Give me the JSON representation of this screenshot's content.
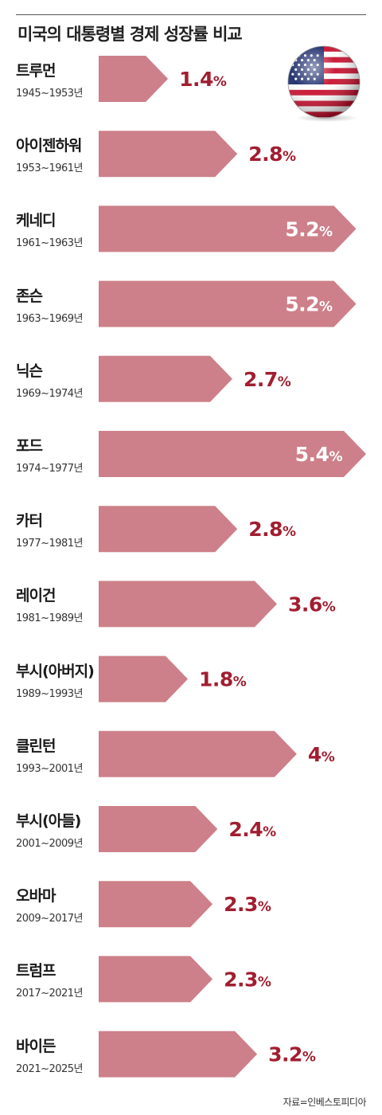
{
  "chart_data": {
    "type": "bar",
    "orientation": "horizontal",
    "title": "미국의 대통령별 경제 성장률 비교",
    "unit": "%",
    "categories": [
      "트루먼",
      "아이젠하워",
      "케네디",
      "존슨",
      "닉슨",
      "포드",
      "카터",
      "레이건",
      "부시(아버지)",
      "클린턴",
      "부시(아들)",
      "오바마",
      "트럼프",
      "바이든"
    ],
    "terms": [
      "1945~1953년",
      "1953~1961년",
      "1961~1963년",
      "1963~1969년",
      "1969~1974년",
      "1974~1977년",
      "1977~1981년",
      "1981~1989년",
      "1989~1993년",
      "1993~2001년",
      "2001~2009년",
      "2009~2017년",
      "2017~2021년",
      "2021~2025년"
    ],
    "values": [
      1.4,
      2.8,
      5.2,
      5.2,
      2.7,
      5.4,
      2.8,
      3.6,
      1.8,
      4,
      2.4,
      2.3,
      2.3,
      3.2
    ],
    "value_labels": [
      "1.4",
      "2.8",
      "5.2",
      "5.2",
      "2.7",
      "5.4",
      "2.8",
      "3.6",
      "1.8",
      "4",
      "2.4",
      "2.3",
      "2.3",
      "3.2"
    ],
    "xlim": [
      0,
      5.4
    ],
    "grid": false,
    "legend": "none"
  },
  "colors": {
    "bar": "#cd8089",
    "value_outside": "#a11e30",
    "value_inside": "#ffffff"
  },
  "icons": {
    "flag": "us-flag-sphere-icon"
  },
  "source": "자료=인베스토피디아"
}
